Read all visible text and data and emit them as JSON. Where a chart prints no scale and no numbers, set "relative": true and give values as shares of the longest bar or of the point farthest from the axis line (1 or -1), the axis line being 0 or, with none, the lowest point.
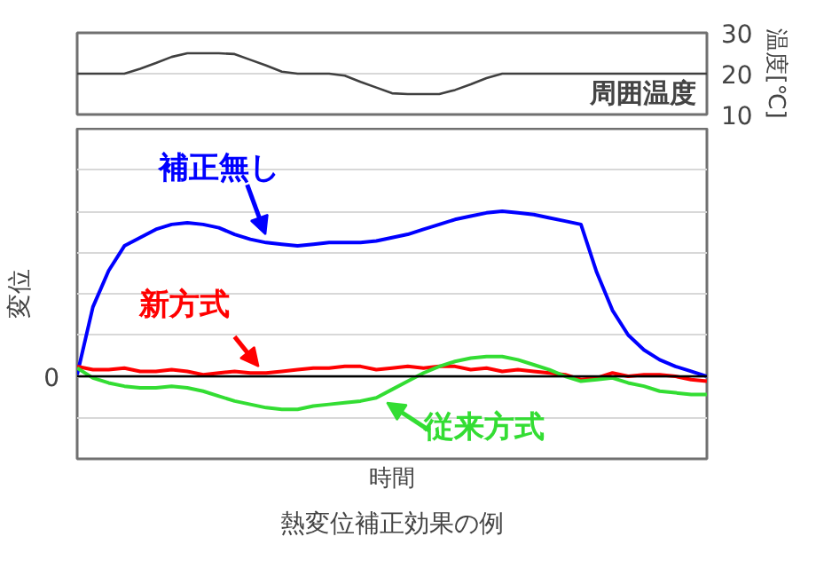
{
  "chart_data": [
    {
      "type": "line",
      "ylabel": "温度[℃]",
      "annotations": [
        "周囲温度"
      ],
      "categories": [
        null,
        null,
        null,
        null,
        null,
        null,
        null,
        null,
        null,
        null,
        null,
        null,
        null,
        null,
        null,
        null,
        null,
        null,
        null,
        null,
        null,
        null,
        null,
        null,
        null,
        null,
        null,
        null,
        null,
        null,
        null,
        null,
        null,
        null,
        null,
        null,
        null,
        null,
        null,
        null,
        null
      ],
      "series": [
        {
          "color": "#404040",
          "values": [
            20,
            20,
            20,
            20,
            21.2,
            22.6,
            24.1,
            25,
            25,
            25,
            24.8,
            23.4,
            22,
            20.5,
            20,
            20,
            20,
            19.5,
            18,
            16.6,
            15.2,
            15,
            15,
            15,
            16,
            17.4,
            18.9,
            20,
            20,
            20,
            20,
            20,
            20,
            20,
            20,
            20,
            20,
            20,
            20,
            20,
            20
          ]
        }
      ],
      "ylim": [
        10,
        30
      ],
      "yticks": [
        10,
        20,
        30
      ],
      "grid": "y",
      "tick_labels": "y"
    },
    {
      "type": "line",
      "relative": true,
      "xlabel": "時間",
      "ylabel": "変位",
      "title": "熱変位補正効果の例",
      "annotations": [
        "0"
      ],
      "categories": [
        null,
        null,
        null,
        null,
        null,
        null,
        null,
        null,
        null,
        null,
        null,
        null,
        null,
        null,
        null,
        null,
        null,
        null,
        null,
        null,
        null,
        null,
        null,
        null,
        null,
        null,
        null,
        null,
        null,
        null,
        null,
        null,
        null,
        null,
        null,
        null,
        null,
        null,
        null,
        null,
        null
      ],
      "grid": "y",
      "series": [
        {
          "name": "補正無し",
          "color": "#0000ff",
          "values": [
            0.01,
            0.42,
            0.64,
            0.79,
            0.84,
            0.89,
            0.92,
            0.93,
            0.92,
            0.9,
            0.86,
            0.83,
            0.81,
            0.8,
            0.79,
            0.8,
            0.81,
            0.81,
            0.81,
            0.82,
            0.84,
            0.86,
            0.89,
            0.92,
            0.95,
            0.97,
            0.99,
            1.0,
            0.99,
            0.98,
            0.96,
            0.94,
            0.92,
            0.63,
            0.4,
            0.25,
            0.16,
            0.1,
            0.06,
            0.03,
            0.0
          ]
        },
        {
          "name": "新方式",
          "color": "#ff0000",
          "values": [
            0.06,
            0.04,
            0.04,
            0.05,
            0.03,
            0.03,
            0.04,
            0.03,
            0.01,
            0.02,
            0.03,
            0.02,
            0.02,
            0.03,
            0.04,
            0.05,
            0.05,
            0.06,
            0.06,
            0.04,
            0.05,
            0.06,
            0.05,
            0.06,
            0.06,
            0.04,
            0.05,
            0.03,
            0.04,
            0.03,
            0.02,
            0.01,
            -0.02,
            -0.01,
            0.02,
            0.0,
            0.01,
            0.01,
            0.0,
            -0.02,
            -0.03
          ]
        },
        {
          "name": "従来方式",
          "color": "#33dd33",
          "values": [
            0.05,
            -0.01,
            -0.04,
            -0.06,
            -0.07,
            -0.07,
            -0.06,
            -0.07,
            -0.09,
            -0.12,
            -0.15,
            -0.17,
            -0.19,
            -0.2,
            -0.2,
            -0.18,
            -0.17,
            -0.16,
            -0.15,
            -0.13,
            -0.08,
            -0.03,
            0.02,
            0.06,
            0.09,
            0.11,
            0.12,
            0.12,
            0.1,
            0.07,
            0.04,
            0.0,
            -0.03,
            -0.02,
            -0.01,
            -0.04,
            -0.06,
            -0.09,
            -0.1,
            -0.11,
            -0.11
          ]
        }
      ]
    }
  ]
}
